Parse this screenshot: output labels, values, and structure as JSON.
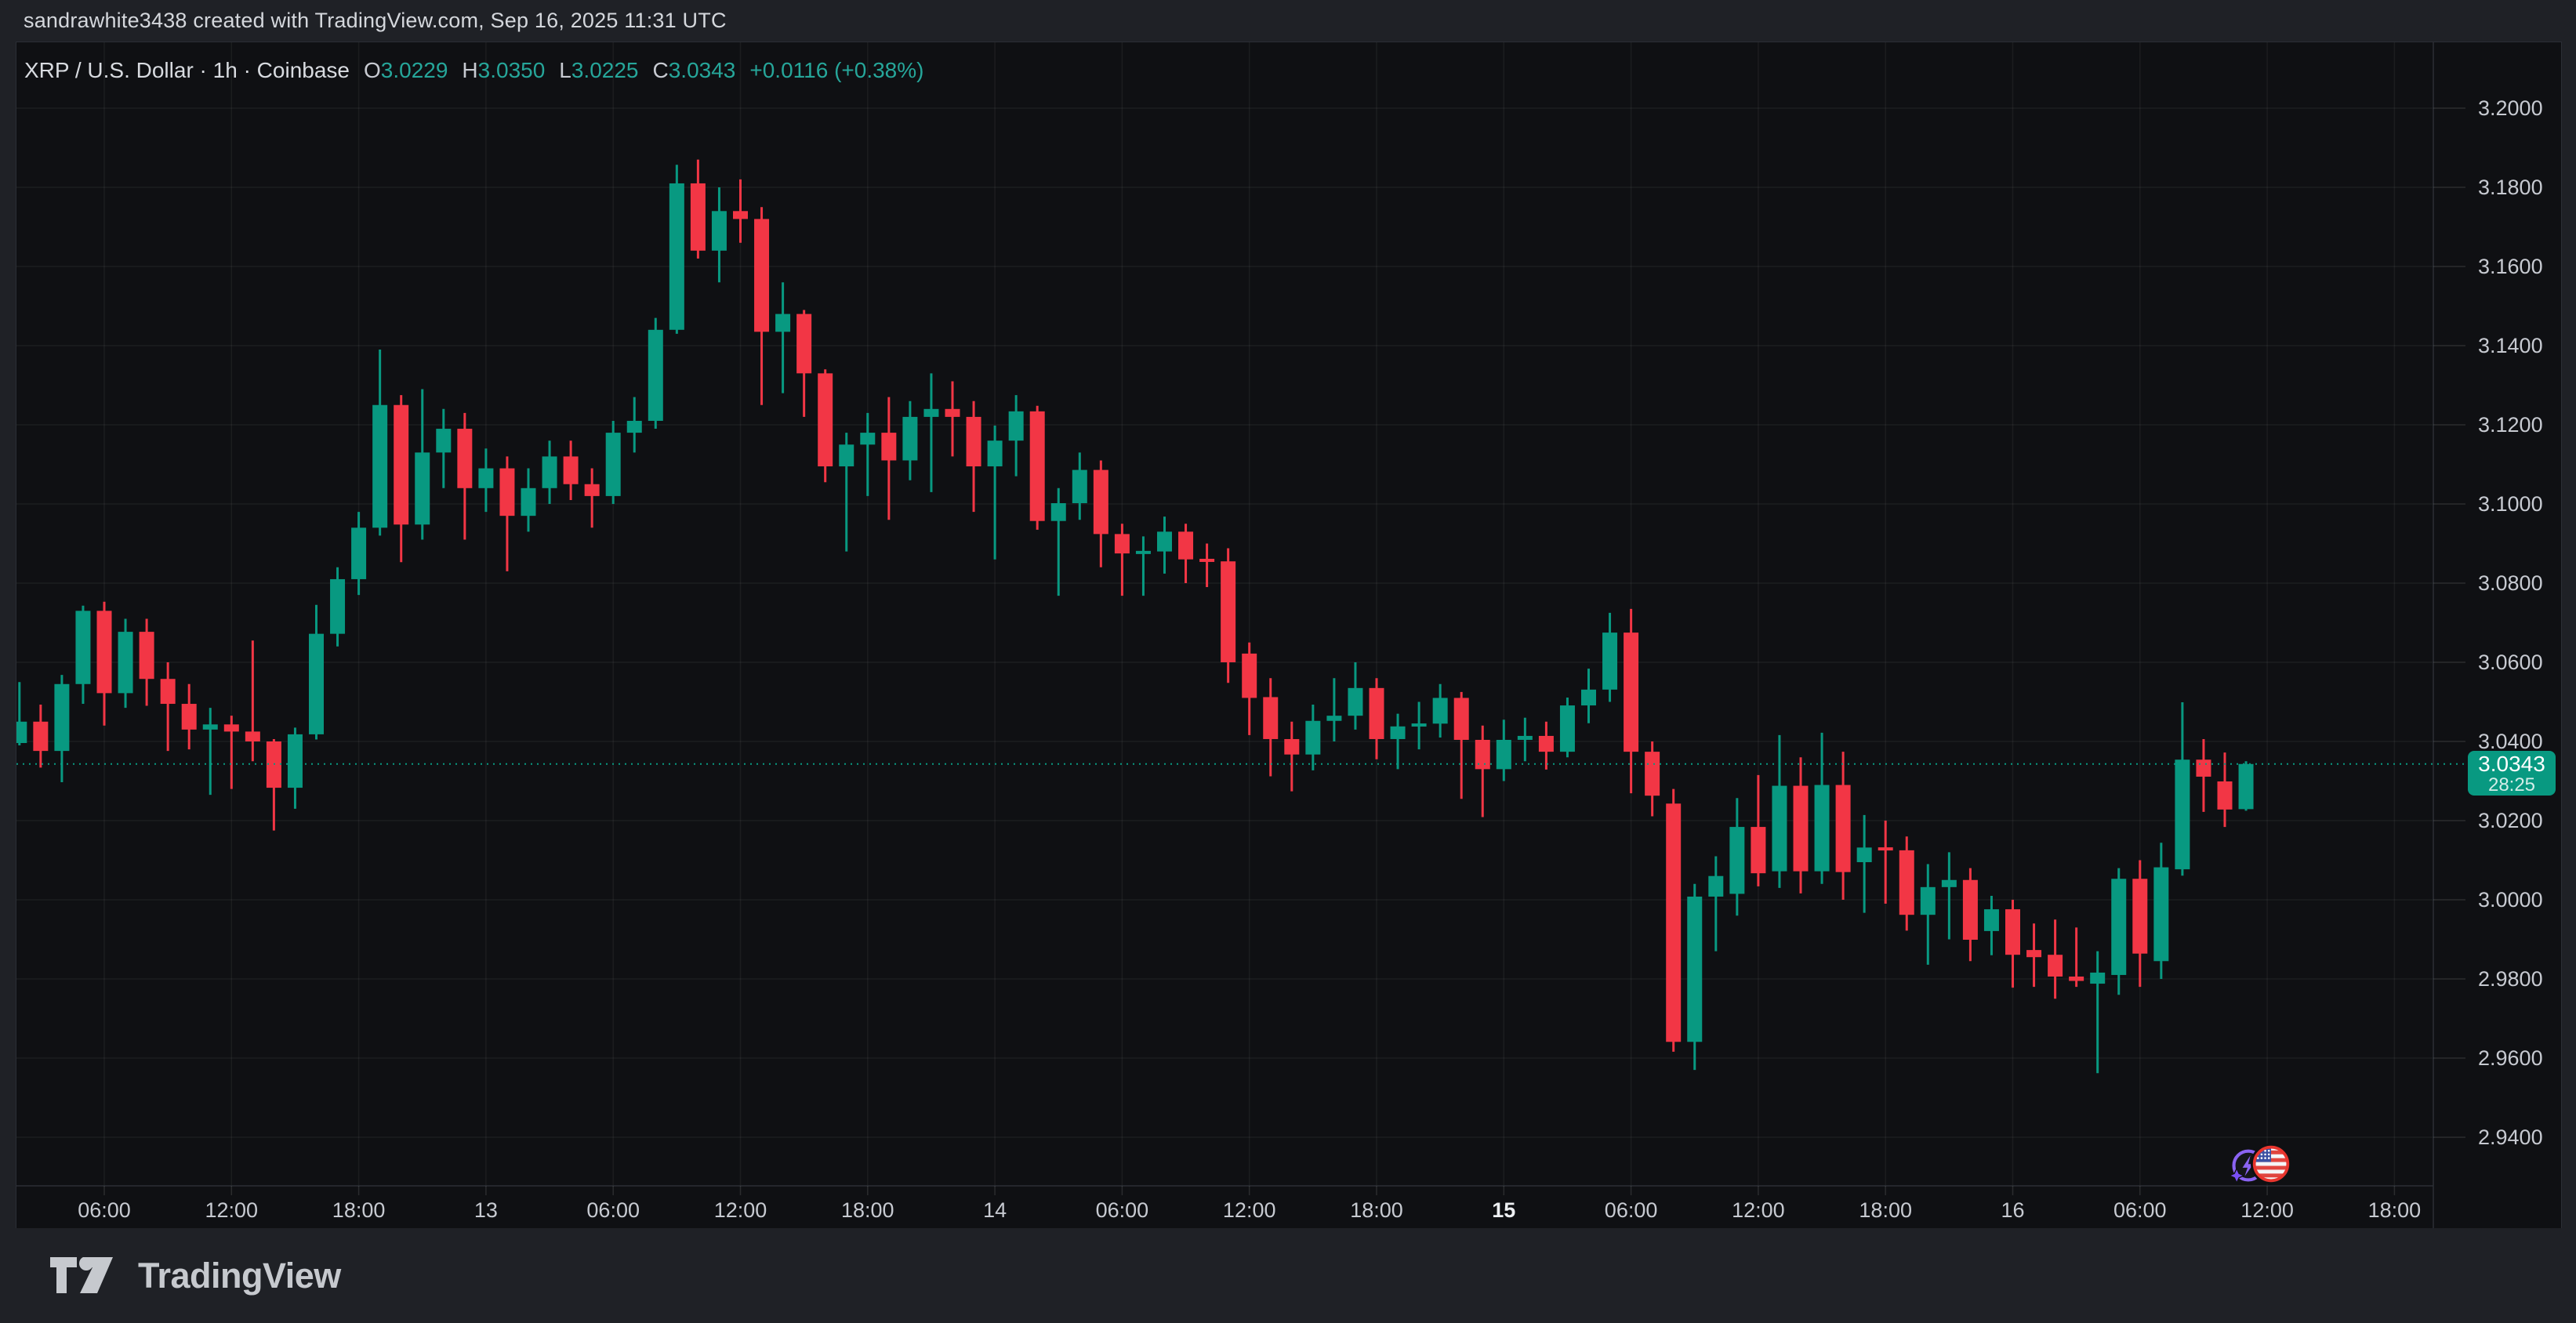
{
  "app": {
    "watermark": "sandrawhite3438 created with TradingView.com, Sep 16, 2025 11:31 UTC"
  },
  "legend": {
    "title": "XRP / U.S. Dollar · 1h · Coinbase",
    "ohlc": [
      {
        "label": "O",
        "value": "3.0229"
      },
      {
        "label": "H",
        "value": "3.0350"
      },
      {
        "label": "L",
        "value": "3.0225"
      },
      {
        "label": "C",
        "value": "3.0343"
      }
    ],
    "change": "+0.0116 (+0.38%)"
  },
  "price_label": {
    "price": "3.0343",
    "countdown": "28:25"
  },
  "price_axis": {
    "labels": [
      {
        "text": "3.2000",
        "value": 3.2
      },
      {
        "text": "3.1800",
        "value": 3.18
      },
      {
        "text": "3.1600",
        "value": 3.16
      },
      {
        "text": "3.1400",
        "value": 3.14
      },
      {
        "text": "3.1200",
        "value": 3.12
      },
      {
        "text": "3.1000",
        "value": 3.1
      },
      {
        "text": "3.0800",
        "value": 3.08
      },
      {
        "text": "3.0600",
        "value": 3.06
      },
      {
        "text": "3.0400",
        "value": 3.04
      },
      {
        "text": "3.0200",
        "value": 3.02
      },
      {
        "text": "3.0000",
        "value": 3.0
      },
      {
        "text": "2.9800",
        "value": 2.98
      },
      {
        "text": "2.9600",
        "value": 2.96
      },
      {
        "text": "2.9400",
        "value": 2.94
      }
    ]
  },
  "time_axis": {
    "ticks": [
      {
        "label": "06:00",
        "bold": false
      },
      {
        "label": "12:00",
        "bold": false
      },
      {
        "label": "18:00",
        "bold": false
      },
      {
        "label": "13",
        "bold": false
      },
      {
        "label": "06:00",
        "bold": false
      },
      {
        "label": "12:00",
        "bold": false
      },
      {
        "label": "18:00",
        "bold": false
      },
      {
        "label": "14",
        "bold": false
      },
      {
        "label": "06:00",
        "bold": false
      },
      {
        "label": "12:00",
        "bold": false
      },
      {
        "label": "18:00",
        "bold": false
      },
      {
        "label": "15",
        "bold": true
      },
      {
        "label": "06:00",
        "bold": false
      },
      {
        "label": "12:00",
        "bold": false
      },
      {
        "label": "18:00",
        "bold": false
      },
      {
        "label": "16",
        "bold": false
      },
      {
        "label": "06:00",
        "bold": false
      },
      {
        "label": "12:00",
        "bold": false
      },
      {
        "label": "18:00",
        "bold": false
      }
    ]
  },
  "events": [
    {
      "name": "crypto-event",
      "style": "purple-lightning-sparkle"
    },
    {
      "name": "us-economic-event",
      "style": "red-ring-us-flag"
    }
  ],
  "footer": {
    "brand": "TradingView"
  },
  "colors": {
    "up": "#089981",
    "down": "#f23645",
    "accent": "#089981",
    "grid": "rgba(250,250,250,0.055)",
    "tick": "rgba(250,250,250,0.12)",
    "axis_text": "#c7cad1",
    "axis_text_bold": "#eef0f3",
    "border": "#2b2e35",
    "bg_chart": "#0f1013",
    "bg_bars": "#1f2126"
  },
  "chart_data": {
    "type": "candlestick",
    "title": "XRP / U.S. Dollar",
    "symbol": "XRP/USD",
    "exchange": "Coinbase",
    "interval": "1h",
    "start_time": "2025-09-12 02:00 UTC",
    "step_hours": 1,
    "ylim": [
      2.94,
      3.2
    ],
    "y_step": 0.02,
    "current_price": 3.0343,
    "countdown": "28:25",
    "grid": true,
    "candles_ohlc": [
      [
        3.0396,
        3.055,
        3.039,
        3.045
      ],
      [
        3.045,
        3.0493,
        3.0334,
        3.0376
      ],
      [
        3.0376,
        3.0568,
        3.0297,
        3.0545
      ],
      [
        3.0545,
        3.0743,
        3.0495,
        3.073
      ],
      [
        3.073,
        3.0753,
        3.044,
        3.0522
      ],
      [
        3.0522,
        3.071,
        3.0485,
        3.0677
      ],
      [
        3.0677,
        3.071,
        3.049,
        3.0558
      ],
      [
        3.0558,
        3.06,
        3.0376,
        3.0495
      ],
      [
        3.0495,
        3.0545,
        3.038,
        3.043
      ],
      [
        3.043,
        3.0485,
        3.0265,
        3.0443
      ],
      [
        3.0443,
        3.0465,
        3.028,
        3.0425
      ],
      [
        3.0425,
        3.0655,
        3.035,
        3.04
      ],
      [
        3.04,
        3.0406,
        3.0175,
        3.0283
      ],
      [
        3.0283,
        3.0435,
        3.023,
        3.0418
      ],
      [
        3.0418,
        3.0745,
        3.0405,
        3.0672
      ],
      [
        3.0672,
        3.084,
        3.064,
        3.081
      ],
      [
        3.081,
        3.098,
        3.077,
        3.094
      ],
      [
        3.094,
        3.139,
        3.092,
        3.125
      ],
      [
        3.125,
        3.1275,
        3.0853,
        3.0948
      ],
      [
        3.0948,
        3.129,
        3.091,
        3.113
      ],
      [
        3.113,
        3.124,
        3.104,
        3.119
      ],
      [
        3.119,
        3.123,
        3.091,
        3.104
      ],
      [
        3.104,
        3.114,
        3.098,
        3.109
      ],
      [
        3.109,
        3.112,
        3.083,
        3.097
      ],
      [
        3.097,
        3.109,
        3.093,
        3.104
      ],
      [
        3.104,
        3.116,
        3.1,
        3.112
      ],
      [
        3.112,
        3.116,
        3.101,
        3.105
      ],
      [
        3.105,
        3.109,
        3.094,
        3.102
      ],
      [
        3.102,
        3.121,
        3.1,
        3.118
      ],
      [
        3.118,
        3.127,
        3.113,
        3.121
      ],
      [
        3.121,
        3.147,
        3.119,
        3.144
      ],
      [
        3.144,
        3.1857,
        3.143,
        3.181
      ],
      [
        3.181,
        3.187,
        3.162,
        3.164
      ],
      [
        3.164,
        3.18,
        3.156,
        3.174
      ],
      [
        3.174,
        3.182,
        3.166,
        3.172
      ],
      [
        3.172,
        3.175,
        3.125,
        3.1435
      ],
      [
        3.1435,
        3.156,
        3.128,
        3.148
      ],
      [
        3.148,
        3.149,
        3.122,
        3.133
      ],
      [
        3.133,
        3.134,
        3.1055,
        3.1095
      ],
      [
        3.1095,
        3.118,
        3.088,
        3.115
      ],
      [
        3.115,
        3.123,
        3.102,
        3.118
      ],
      [
        3.118,
        3.127,
        3.096,
        3.111
      ],
      [
        3.111,
        3.126,
        3.106,
        3.122
      ],
      [
        3.122,
        3.133,
        3.103,
        3.124
      ],
      [
        3.124,
        3.131,
        3.112,
        3.122
      ],
      [
        3.122,
        3.126,
        3.098,
        3.1095
      ],
      [
        3.1095,
        3.1198,
        3.086,
        3.116
      ],
      [
        3.116,
        3.1275,
        3.107,
        3.1234
      ],
      [
        3.1234,
        3.1248,
        3.0935,
        3.0957
      ],
      [
        3.0957,
        3.104,
        3.0768,
        3.1002
      ],
      [
        3.1002,
        3.113,
        3.096,
        3.1086
      ],
      [
        3.1086,
        3.111,
        3.084,
        3.0924
      ],
      [
        3.0924,
        3.095,
        3.0768,
        3.0875
      ],
      [
        3.0875,
        3.0918,
        3.0768,
        3.088
      ],
      [
        3.088,
        3.0968,
        3.0824,
        3.093
      ],
      [
        3.093,
        3.095,
        3.08,
        3.086
      ],
      [
        3.086,
        3.09,
        3.079,
        3.0855
      ],
      [
        3.0855,
        3.0888,
        3.0548,
        3.06
      ],
      [
        3.0622,
        3.065,
        3.0416,
        3.051
      ],
      [
        3.0512,
        3.056,
        3.0312,
        3.0406
      ],
      [
        3.0406,
        3.045,
        3.0274,
        3.0367
      ],
      [
        3.0367,
        3.0493,
        3.0327,
        3.0452
      ],
      [
        3.0452,
        3.056,
        3.04,
        3.0465
      ],
      [
        3.0465,
        3.06,
        3.043,
        3.0535
      ],
      [
        3.0535,
        3.056,
        3.0355,
        3.0406
      ],
      [
        3.0406,
        3.047,
        3.033,
        3.0438
      ],
      [
        3.0438,
        3.05,
        3.038,
        3.0445
      ],
      [
        3.0445,
        3.0545,
        3.041,
        3.051
      ],
      [
        3.051,
        3.0525,
        3.0255,
        3.0404
      ],
      [
        3.0404,
        3.044,
        3.0209,
        3.033
      ],
      [
        3.033,
        3.0455,
        3.03,
        3.0404
      ],
      [
        3.0404,
        3.046,
        3.035,
        3.0414
      ],
      [
        3.0414,
        3.045,
        3.0329,
        3.0374
      ],
      [
        3.0374,
        3.0511,
        3.036,
        3.0491
      ],
      [
        3.0491,
        3.0584,
        3.0446,
        3.0531
      ],
      [
        3.0531,
        3.0725,
        3.05,
        3.0675
      ],
      [
        3.0675,
        3.0735,
        3.0269,
        3.0374
      ],
      [
        3.0374,
        3.04,
        3.0211,
        3.0263
      ],
      [
        3.0243,
        3.028,
        2.9616,
        2.9641
      ],
      [
        2.9641,
        3.004,
        2.957,
        3.0008
      ],
      [
        3.0008,
        3.011,
        2.987,
        3.006
      ],
      [
        3.0015,
        3.0257,
        2.996,
        3.0184
      ],
      [
        3.0184,
        3.0315,
        3.0034,
        3.0067
      ],
      [
        3.0072,
        3.0416,
        3.003,
        3.0288
      ],
      [
        3.0288,
        3.036,
        3.0016,
        3.0072
      ],
      [
        3.0072,
        3.0422,
        3.004,
        3.029
      ],
      [
        3.029,
        3.0374,
        3.0,
        3.007
      ],
      [
        3.0095,
        3.0214,
        2.9967,
        3.0132
      ],
      [
        3.0132,
        3.02,
        2.999,
        3.0125
      ],
      [
        3.0125,
        3.016,
        2.9922,
        2.9962
      ],
      [
        2.9962,
        3.009,
        2.9836,
        3.0032
      ],
      [
        3.0032,
        3.012,
        2.99,
        3.005
      ],
      [
        3.005,
        3.008,
        2.9845,
        2.9899
      ],
      [
        2.9921,
        3.001,
        2.986,
        2.9976
      ],
      [
        2.9976,
        3.0,
        2.9778,
        2.9861
      ],
      [
        2.9873,
        2.994,
        2.978,
        2.9855
      ],
      [
        2.9861,
        2.995,
        2.975,
        2.9806
      ],
      [
        2.9806,
        2.993,
        2.978,
        2.9795
      ],
      [
        2.9788,
        2.987,
        2.9562,
        2.9816
      ],
      [
        2.981,
        3.008,
        2.976,
        3.0053
      ],
      [
        3.0053,
        3.01,
        2.978,
        2.9864
      ],
      [
        2.9845,
        3.0144,
        2.98,
        3.0082
      ],
      [
        3.0077,
        3.0499,
        3.0061,
        3.0354
      ],
      [
        3.0354,
        3.0406,
        3.0222,
        3.0311
      ],
      [
        3.0299,
        3.0372,
        3.0184,
        3.0228
      ],
      [
        3.0229,
        3.035,
        3.0225,
        3.0343
      ]
    ]
  }
}
